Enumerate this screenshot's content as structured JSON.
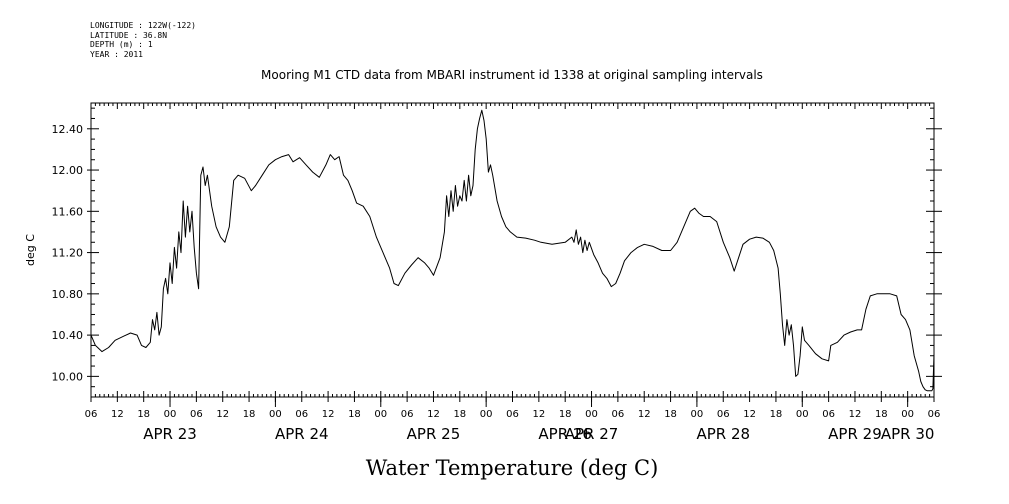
{
  "metadata": [
    {
      "label": "LONGITUDE",
      "value": "122W(-122)"
    },
    {
      "label": "LATITUDE",
      "value": "36.8N"
    },
    {
      "label": "DEPTH (m)",
      "value": "1"
    },
    {
      "label": "YEAR",
      "value": "2011"
    }
  ],
  "chart_data": {
    "type": "line",
    "title": "Mooring M1 CTD data from MBARI instrument id 1338 at original sampling intervals",
    "xlabel": "Water Temperature (deg C)",
    "ylabel": "deg C",
    "xlim": [
      "2011-04-22T06:00",
      "2011-04-30T06:00"
    ],
    "ylim": [
      9.8,
      12.65
    ],
    "grid": false,
    "y_ticks": [
      "10.00",
      "10.40",
      "10.80",
      "11.20",
      "11.60",
      "12.00",
      "12.40"
    ],
    "x_hour_labels": [
      "06",
      "12",
      "18",
      "00",
      "06",
      "12",
      "18",
      "00",
      "06",
      "12",
      "18",
      "00",
      "06",
      "12",
      "18",
      "00",
      "06",
      "12",
      "18",
      "00",
      "06",
      "12",
      "18",
      "00",
      "06",
      "12",
      "18",
      "00",
      "06",
      "12",
      "18",
      "00",
      "06"
    ],
    "x_date_labels": [
      {
        "text": "APR 23",
        "at": "2011-04-23T00:00"
      },
      {
        "text": "APR 24",
        "at": "2011-04-24T06:00"
      },
      {
        "text": "APR 25",
        "at": "2011-04-25T12:00"
      },
      {
        "text": "APR 26",
        "at": "2011-04-26T18:00"
      },
      {
        "text": "APR 27",
        "at": "2011-04-27T00:00"
      },
      {
        "text": "APR 28",
        "at": "2011-04-28T06:00"
      },
      {
        "text": "APR 29",
        "at": "2011-04-29T12:00"
      },
      {
        "text": "APR 30",
        "at": "2011-04-30T00:00"
      }
    ],
    "series": [
      {
        "color": "#000000",
        "points": [
          [
            "2011-04-22T06:00",
            10.4
          ],
          [
            "2011-04-22T07:00",
            10.3
          ],
          [
            "2011-04-22T08:30",
            10.24
          ],
          [
            "2011-04-22T10:00",
            10.28
          ],
          [
            "2011-04-22T11:30",
            10.35
          ],
          [
            "2011-04-22T13:30",
            10.39
          ],
          [
            "2011-04-22T15:00",
            10.42
          ],
          [
            "2011-04-22T16:30",
            10.4
          ],
          [
            "2011-04-22T17:30",
            10.3
          ],
          [
            "2011-04-22T18:30",
            10.28
          ],
          [
            "2011-04-22T19:30",
            10.33
          ],
          [
            "2011-04-22T20:00",
            10.55
          ],
          [
            "2011-04-22T20:30",
            10.45
          ],
          [
            "2011-04-22T21:00",
            10.62
          ],
          [
            "2011-04-22T21:30",
            10.4
          ],
          [
            "2011-04-22T22:00",
            10.48
          ],
          [
            "2011-04-22T22:30",
            10.85
          ],
          [
            "2011-04-22T23:00",
            10.95
          ],
          [
            "2011-04-22T23:30",
            10.8
          ],
          [
            "2011-04-23T00:00",
            11.1
          ],
          [
            "2011-04-23T00:30",
            10.9
          ],
          [
            "2011-04-23T01:00",
            11.25
          ],
          [
            "2011-04-23T01:30",
            11.05
          ],
          [
            "2011-04-23T02:00",
            11.4
          ],
          [
            "2011-04-23T02:30",
            11.2
          ],
          [
            "2011-04-23T03:00",
            11.7
          ],
          [
            "2011-04-23T03:30",
            11.35
          ],
          [
            "2011-04-23T04:00",
            11.65
          ],
          [
            "2011-04-23T04:30",
            11.4
          ],
          [
            "2011-04-23T05:00",
            11.6
          ],
          [
            "2011-04-23T05:30",
            11.25
          ],
          [
            "2011-04-23T06:00",
            11.0
          ],
          [
            "2011-04-23T06:30",
            10.85
          ],
          [
            "2011-04-23T07:00",
            11.95
          ],
          [
            "2011-04-23T07:30",
            12.03
          ],
          [
            "2011-04-23T08:00",
            11.85
          ],
          [
            "2011-04-23T08:30",
            11.95
          ],
          [
            "2011-04-23T09:30",
            11.65
          ],
          [
            "2011-04-23T10:30",
            11.45
          ],
          [
            "2011-04-23T11:30",
            11.35
          ],
          [
            "2011-04-23T12:30",
            11.3
          ],
          [
            "2011-04-23T13:30",
            11.45
          ],
          [
            "2011-04-23T14:30",
            11.9
          ],
          [
            "2011-04-23T15:30",
            11.95
          ],
          [
            "2011-04-23T17:00",
            11.92
          ],
          [
            "2011-04-23T18:30",
            11.8
          ],
          [
            "2011-04-23T19:30",
            11.85
          ],
          [
            "2011-04-23T21:00",
            11.95
          ],
          [
            "2011-04-23T22:30",
            12.05
          ],
          [
            "2011-04-24T00:00",
            12.1
          ],
          [
            "2011-04-24T01:30",
            12.13
          ],
          [
            "2011-04-24T03:00",
            12.15
          ],
          [
            "2011-04-24T04:00",
            12.08
          ],
          [
            "2011-04-24T05:30",
            12.12
          ],
          [
            "2011-04-24T07:00",
            12.05
          ],
          [
            "2011-04-24T08:30",
            11.98
          ],
          [
            "2011-04-24T10:00",
            11.93
          ],
          [
            "2011-04-24T11:30",
            12.05
          ],
          [
            "2011-04-24T12:30",
            12.15
          ],
          [
            "2011-04-24T13:30",
            12.1
          ],
          [
            "2011-04-24T14:30",
            12.13
          ],
          [
            "2011-04-24T15:30",
            11.95
          ],
          [
            "2011-04-24T16:30",
            11.9
          ],
          [
            "2011-04-24T17:30",
            11.8
          ],
          [
            "2011-04-24T18:30",
            11.68
          ],
          [
            "2011-04-24T20:00",
            11.65
          ],
          [
            "2011-04-24T21:30",
            11.55
          ],
          [
            "2011-04-24T23:00",
            11.35
          ],
          [
            "2011-04-25T00:30",
            11.2
          ],
          [
            "2011-04-25T02:00",
            11.05
          ],
          [
            "2011-04-25T03:00",
            10.9
          ],
          [
            "2011-04-25T04:00",
            10.88
          ],
          [
            "2011-04-25T05:30",
            11.0
          ],
          [
            "2011-04-25T07:00",
            11.08
          ],
          [
            "2011-04-25T08:30",
            11.15
          ],
          [
            "2011-04-25T10:00",
            11.1
          ],
          [
            "2011-04-25T11:00",
            11.05
          ],
          [
            "2011-04-25T12:00",
            10.98
          ],
          [
            "2011-04-25T13:30",
            11.15
          ],
          [
            "2011-04-25T14:30",
            11.4
          ],
          [
            "2011-04-25T15:00",
            11.75
          ],
          [
            "2011-04-25T15:30",
            11.55
          ],
          [
            "2011-04-25T16:00",
            11.8
          ],
          [
            "2011-04-25T16:30",
            11.6
          ],
          [
            "2011-04-25T17:00",
            11.85
          ],
          [
            "2011-04-25T17:30",
            11.65
          ],
          [
            "2011-04-25T18:00",
            11.75
          ],
          [
            "2011-04-25T18:30",
            11.7
          ],
          [
            "2011-04-25T19:00",
            11.9
          ],
          [
            "2011-04-25T19:30",
            11.7
          ],
          [
            "2011-04-25T20:00",
            11.95
          ],
          [
            "2011-04-25T20:30",
            11.75
          ],
          [
            "2011-04-25T21:00",
            11.85
          ],
          [
            "2011-04-25T21:30",
            12.2
          ],
          [
            "2011-04-25T22:00",
            12.4
          ],
          [
            "2011-04-25T22:30",
            12.5
          ],
          [
            "2011-04-25T23:00",
            12.58
          ],
          [
            "2011-04-25T23:30",
            12.48
          ],
          [
            "2011-04-26T00:00",
            12.3
          ],
          [
            "2011-04-26T00:30",
            11.98
          ],
          [
            "2011-04-26T01:00",
            12.05
          ],
          [
            "2011-04-26T01:30",
            11.95
          ],
          [
            "2011-04-26T02:30",
            11.7
          ],
          [
            "2011-04-26T03:30",
            11.55
          ],
          [
            "2011-04-26T04:30",
            11.45
          ],
          [
            "2011-04-26T05:30",
            11.4
          ],
          [
            "2011-04-26T07:00",
            11.35
          ],
          [
            "2011-04-26T09:00",
            11.34
          ],
          [
            "2011-04-26T11:00",
            11.32
          ],
          [
            "2011-04-26T12:30",
            11.3
          ],
          [
            "2011-04-26T15:00",
            11.28
          ],
          [
            "2011-04-26T18:00",
            11.3
          ],
          [
            "2011-04-26T19:30",
            11.35
          ],
          [
            "2011-04-26T20:00",
            11.3
          ],
          [
            "2011-04-26T20:30",
            11.42
          ],
          [
            "2011-04-26T21:00",
            11.28
          ],
          [
            "2011-04-26T21:30",
            11.35
          ],
          [
            "2011-04-26T22:00",
            11.2
          ],
          [
            "2011-04-26T22:30",
            11.32
          ],
          [
            "2011-04-26T23:00",
            11.22
          ],
          [
            "2011-04-26T23:30",
            11.3
          ],
          [
            "2011-04-27T00:30",
            11.18
          ],
          [
            "2011-04-27T01:30",
            11.1
          ],
          [
            "2011-04-27T02:30",
            11.0
          ],
          [
            "2011-04-27T03:30",
            10.95
          ],
          [
            "2011-04-27T04:30",
            10.87
          ],
          [
            "2011-04-27T05:30",
            10.9
          ],
          [
            "2011-04-27T06:30",
            11.0
          ],
          [
            "2011-04-27T07:30",
            11.12
          ],
          [
            "2011-04-27T09:00",
            11.2
          ],
          [
            "2011-04-27T10:30",
            11.25
          ],
          [
            "2011-04-27T12:00",
            11.28
          ],
          [
            "2011-04-27T14:00",
            11.26
          ],
          [
            "2011-04-27T16:00",
            11.22
          ],
          [
            "2011-04-27T18:00",
            11.22
          ],
          [
            "2011-04-27T19:30",
            11.3
          ],
          [
            "2011-04-27T21:00",
            11.45
          ],
          [
            "2011-04-27T22:30",
            11.6
          ],
          [
            "2011-04-27T23:30",
            11.63
          ],
          [
            "2011-04-28T00:30",
            11.58
          ],
          [
            "2011-04-28T01:30",
            11.55
          ],
          [
            "2011-04-28T03:00",
            11.55
          ],
          [
            "2011-04-28T04:30",
            11.5
          ],
          [
            "2011-04-28T06:00",
            11.3
          ],
          [
            "2011-04-28T07:30",
            11.15
          ],
          [
            "2011-04-28T08:30",
            11.02
          ],
          [
            "2011-04-28T09:30",
            11.15
          ],
          [
            "2011-04-28T10:30",
            11.28
          ],
          [
            "2011-04-28T12:00",
            11.33
          ],
          [
            "2011-04-28T13:30",
            11.35
          ],
          [
            "2011-04-28T15:00",
            11.34
          ],
          [
            "2011-04-28T16:30",
            11.3
          ],
          [
            "2011-04-28T17:30",
            11.22
          ],
          [
            "2011-04-28T18:30",
            11.05
          ],
          [
            "2011-04-28T19:00",
            10.8
          ],
          [
            "2011-04-28T19:30",
            10.5
          ],
          [
            "2011-04-28T20:00",
            10.3
          ],
          [
            "2011-04-28T20:30",
            10.55
          ],
          [
            "2011-04-28T21:00",
            10.4
          ],
          [
            "2011-04-28T21:30",
            10.5
          ],
          [
            "2011-04-28T22:00",
            10.3
          ],
          [
            "2011-04-28T22:30",
            10.0
          ],
          [
            "2011-04-28T23:00",
            10.02
          ],
          [
            "2011-04-28T23:30",
            10.2
          ],
          [
            "2011-04-29T00:00",
            10.48
          ],
          [
            "2011-04-29T00:30",
            10.35
          ],
          [
            "2011-04-29T01:30",
            10.3
          ],
          [
            "2011-04-29T03:00",
            10.22
          ],
          [
            "2011-04-29T04:30",
            10.17
          ],
          [
            "2011-04-29T06:00",
            10.15
          ],
          [
            "2011-04-29T06:30",
            10.3
          ],
          [
            "2011-04-29T08:00",
            10.33
          ],
          [
            "2011-04-29T09:30",
            10.4
          ],
          [
            "2011-04-29T11:00",
            10.43
          ],
          [
            "2011-04-29T12:30",
            10.45
          ],
          [
            "2011-04-29T13:30",
            10.45
          ],
          [
            "2011-04-29T14:30",
            10.65
          ],
          [
            "2011-04-29T15:30",
            10.78
          ],
          [
            "2011-04-29T17:00",
            10.8
          ],
          [
            "2011-04-29T18:30",
            10.8
          ],
          [
            "2011-04-29T20:00",
            10.8
          ],
          [
            "2011-04-29T21:30",
            10.78
          ],
          [
            "2011-04-29T22:30",
            10.6
          ],
          [
            "2011-04-29T23:30",
            10.55
          ],
          [
            "2011-04-30T00:30",
            10.45
          ],
          [
            "2011-04-30T01:30",
            10.2
          ],
          [
            "2011-04-30T02:30",
            10.05
          ],
          [
            "2011-04-30T03:00",
            9.95
          ],
          [
            "2011-04-30T03:30",
            9.9
          ],
          [
            "2011-04-30T04:00",
            9.87
          ],
          [
            "2011-04-30T04:30",
            9.86
          ],
          [
            "2011-04-30T05:00",
            9.86
          ],
          [
            "2011-04-30T05:30",
            9.86
          ],
          [
            "2011-04-30T05:45",
            9.88
          ],
          [
            "2011-04-30T06:00",
            10.22
          ]
        ]
      }
    ]
  }
}
